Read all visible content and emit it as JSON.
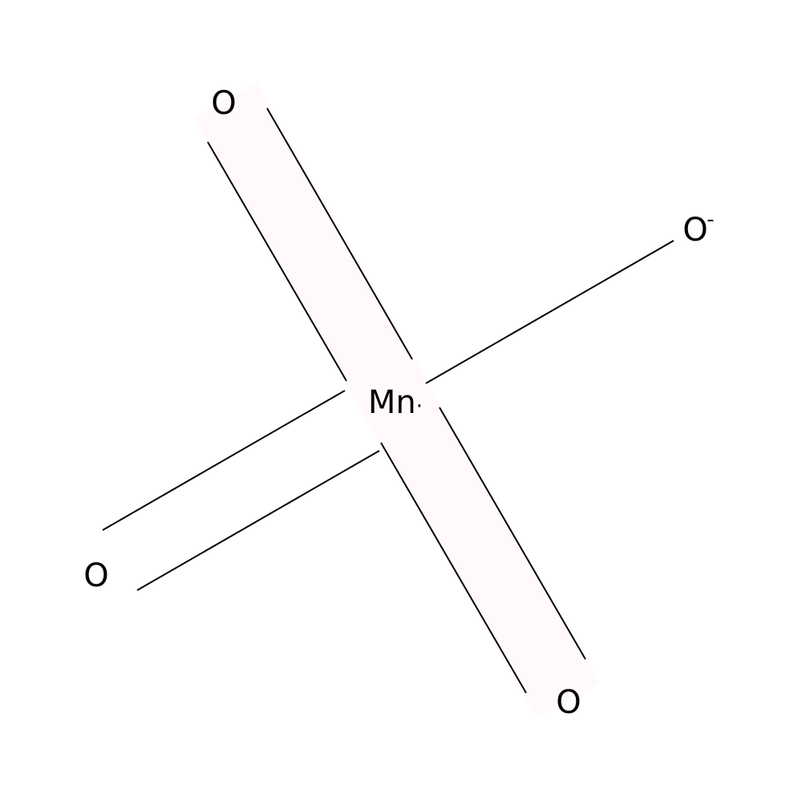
{
  "molecule": {
    "center_atom": {
      "symbol": "Mn",
      "radical": "·"
    },
    "atoms": [
      {
        "id": "o_top",
        "symbol": "O",
        "charge": ""
      },
      {
        "id": "o_right",
        "symbol": "O",
        "charge": "-"
      },
      {
        "id": "o_left",
        "symbol": "O",
        "charge": ""
      },
      {
        "id": "o_bottom",
        "symbol": "O",
        "charge": ""
      }
    ],
    "bonds": [
      {
        "from": "Mn",
        "to": "o_top",
        "order": 2,
        "highlighted": true
      },
      {
        "from": "Mn",
        "to": "o_bottom",
        "order": 2,
        "highlighted": true
      },
      {
        "from": "Mn",
        "to": "o_left",
        "order": 2,
        "highlighted": false
      },
      {
        "from": "Mn",
        "to": "o_right",
        "order": 1,
        "highlighted": false
      }
    ],
    "highlight_color": "#fff9f9"
  }
}
